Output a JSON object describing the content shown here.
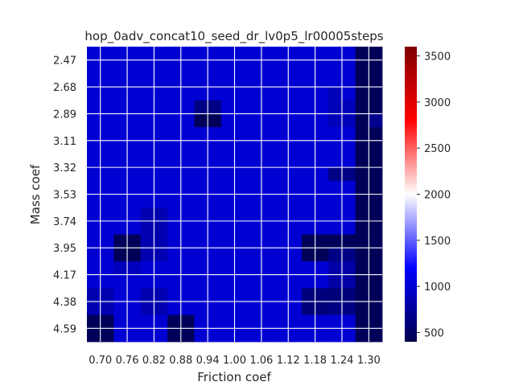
{
  "chart_data": {
    "type": "heatmap",
    "title": "hop_0adv_concat10_seed_dr_lv0p5_lr00005steps",
    "xlabel": "Friction coef",
    "ylabel": "Mass coef",
    "x_tick_labels": [
      "0.70",
      "0.76",
      "0.82",
      "0.88",
      "0.94",
      "1.00",
      "1.06",
      "1.12",
      "1.18",
      "1.24",
      "1.30"
    ],
    "y_tick_labels": [
      "2.47",
      "2.68",
      "2.89",
      "3.11",
      "3.32",
      "3.53",
      "3.74",
      "3.95",
      "4.17",
      "4.38",
      "4.59"
    ],
    "n_cols": 22,
    "n_rows": 22,
    "colorbar": {
      "min": 400,
      "max": 3600,
      "colormap": "seismic",
      "ticks": [
        500,
        1000,
        1500,
        2000,
        2500,
        3000,
        3500
      ]
    },
    "grid": true,
    "values": [
      [
        1000,
        1000,
        1000,
        1000,
        1000,
        1000,
        1000,
        1000,
        1000,
        1000,
        1000,
        1000,
        1000,
        1000,
        1000,
        1000,
        1000,
        1000,
        1000,
        1000,
        450,
        450
      ],
      [
        1000,
        1000,
        1000,
        1000,
        1000,
        1000,
        1000,
        1000,
        1000,
        1000,
        1000,
        1000,
        1000,
        1000,
        1000,
        1000,
        1000,
        1000,
        1000,
        1000,
        450,
        450
      ],
      [
        1000,
        1000,
        1000,
        1000,
        1000,
        1000,
        1000,
        1000,
        1000,
        1000,
        1000,
        1000,
        1000,
        1000,
        1000,
        1000,
        1000,
        1000,
        1000,
        1000,
        450,
        450
      ],
      [
        1000,
        1000,
        1000,
        1000,
        1000,
        1000,
        1000,
        1000,
        1000,
        1000,
        1000,
        1000,
        1000,
        1000,
        1000,
        1000,
        1000,
        1000,
        880,
        1000,
        450,
        450
      ],
      [
        1000,
        1000,
        1000,
        1000,
        1000,
        1000,
        1000,
        1000,
        650,
        650,
        1000,
        1000,
        1000,
        1000,
        1000,
        1000,
        1000,
        1000,
        880,
        880,
        450,
        450
      ],
      [
        1000,
        1000,
        1000,
        1000,
        1000,
        1000,
        1000,
        1000,
        450,
        450,
        1000,
        1000,
        1000,
        1000,
        1000,
        1000,
        1000,
        1000,
        880,
        880,
        450,
        700
      ],
      [
        1000,
        1000,
        1000,
        1000,
        1000,
        1000,
        1000,
        1000,
        1000,
        1000,
        1000,
        1000,
        1000,
        1000,
        1000,
        1000,
        1000,
        1000,
        1000,
        1000,
        450,
        450
      ],
      [
        1000,
        1000,
        1000,
        1000,
        1000,
        1000,
        1000,
        1000,
        1000,
        1000,
        1000,
        1000,
        1000,
        1000,
        1000,
        1000,
        1000,
        1000,
        1000,
        1000,
        450,
        450
      ],
      [
        1000,
        1000,
        1000,
        1000,
        1000,
        1000,
        1000,
        1000,
        1000,
        1000,
        1000,
        1000,
        1000,
        1000,
        1000,
        1000,
        1000,
        1000,
        1000,
        1000,
        450,
        450
      ],
      [
        1000,
        1000,
        1000,
        1000,
        1000,
        1000,
        1000,
        1000,
        1000,
        1000,
        1000,
        1000,
        1000,
        1000,
        1000,
        1000,
        1000,
        1000,
        650,
        650,
        450,
        450
      ],
      [
        1000,
        1000,
        1000,
        1000,
        1000,
        1000,
        1000,
        1000,
        1000,
        1000,
        1000,
        1000,
        1000,
        1000,
        1000,
        1000,
        1000,
        1000,
        1000,
        1000,
        450,
        450
      ],
      [
        1000,
        1000,
        1000,
        1000,
        1000,
        1000,
        1000,
        1000,
        1000,
        1000,
        1000,
        1000,
        1000,
        1000,
        1000,
        1000,
        1000,
        1000,
        1000,
        1000,
        450,
        450
      ],
      [
        1000,
        1000,
        1000,
        1000,
        850,
        850,
        1000,
        1000,
        1000,
        1000,
        1000,
        1000,
        1000,
        1000,
        1000,
        1000,
        1000,
        1000,
        1000,
        1000,
        450,
        450
      ],
      [
        1000,
        1000,
        1000,
        1000,
        850,
        850,
        1000,
        1000,
        1000,
        1000,
        1000,
        1000,
        1000,
        1000,
        1000,
        1000,
        1000,
        1000,
        1000,
        1000,
        450,
        450
      ],
      [
        1000,
        1000,
        450,
        450,
        850,
        850,
        1000,
        1000,
        1000,
        1000,
        1000,
        1000,
        1000,
        1000,
        1000,
        1000,
        450,
        450,
        450,
        450,
        450,
        450
      ],
      [
        1000,
        1000,
        450,
        450,
        850,
        850,
        1000,
        1000,
        1000,
        1000,
        1000,
        1000,
        1000,
        1000,
        1000,
        1000,
        450,
        450,
        650,
        650,
        450,
        450
      ],
      [
        1000,
        1000,
        900,
        900,
        1000,
        1000,
        1000,
        1000,
        1000,
        1000,
        1000,
        1000,
        1000,
        1000,
        1000,
        1000,
        1000,
        1000,
        800,
        800,
        450,
        450
      ],
      [
        1000,
        1000,
        1000,
        1000,
        1000,
        1000,
        1000,
        1000,
        1000,
        1000,
        1000,
        1000,
        1000,
        1000,
        1000,
        1000,
        1000,
        1000,
        800,
        800,
        450,
        450
      ],
      [
        850,
        850,
        1000,
        1000,
        850,
        850,
        1000,
        1000,
        1000,
        1000,
        1000,
        1000,
        1000,
        1000,
        1000,
        1000,
        600,
        600,
        600,
        600,
        450,
        450
      ],
      [
        850,
        850,
        1000,
        1000,
        850,
        850,
        1000,
        1000,
        1000,
        1000,
        1000,
        1000,
        1000,
        1000,
        1000,
        1000,
        600,
        600,
        650,
        650,
        450,
        450
      ],
      [
        450,
        450,
        1000,
        1000,
        1000,
        1000,
        450,
        450,
        1000,
        1000,
        1000,
        1000,
        1000,
        1000,
        1000,
        1000,
        1000,
        1000,
        1000,
        1000,
        450,
        450
      ],
      [
        450,
        450,
        1000,
        1000,
        1000,
        1000,
        450,
        450,
        1000,
        1000,
        1000,
        1000,
        1000,
        1000,
        1000,
        1000,
        1000,
        1000,
        1000,
        1000,
        450,
        450
      ]
    ]
  }
}
